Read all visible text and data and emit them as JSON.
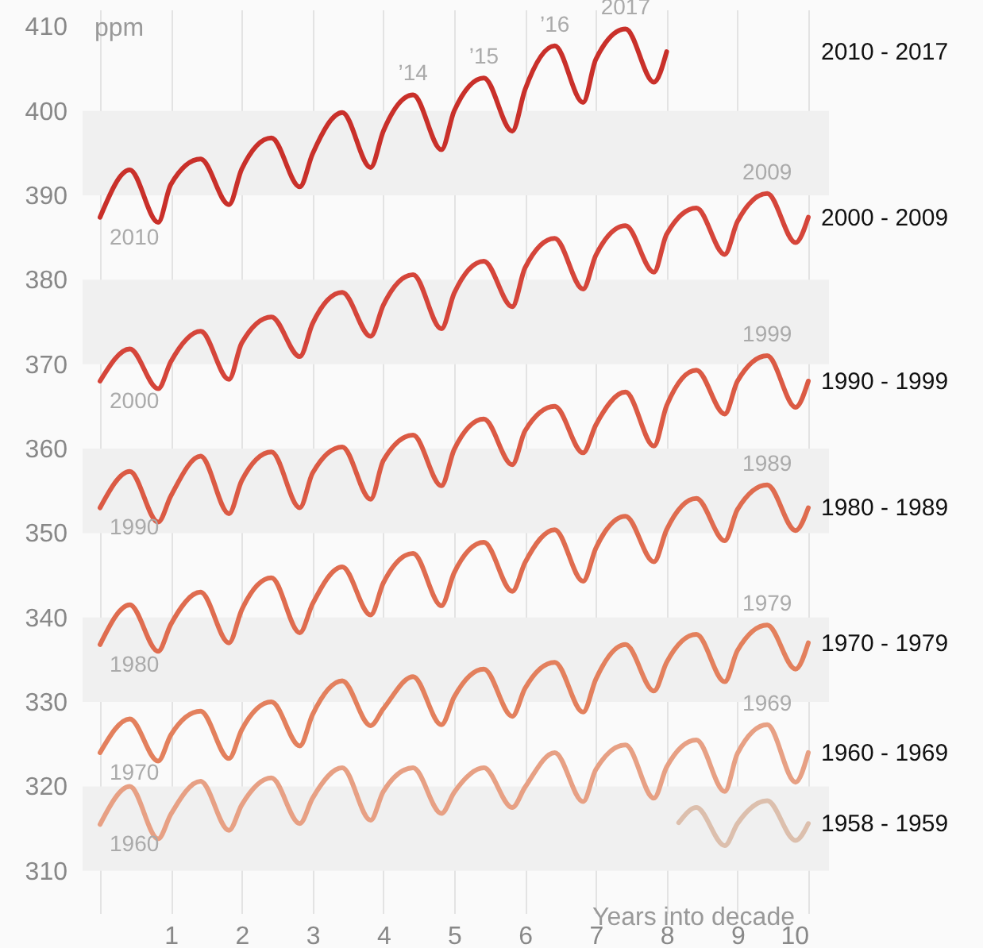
{
  "chart_data": {
    "type": "line",
    "xlabel": "Years into decade",
    "ylabel": "ppm",
    "x": [
      0,
      0.42,
      0.82,
      1,
      1.42,
      1.82,
      2,
      2.42,
      2.82,
      3,
      3.42,
      3.82,
      4,
      4.42,
      4.82,
      5,
      5.42,
      5.82,
      6,
      6.42,
      6.82,
      7,
      7.42,
      7.82,
      8,
      8.42,
      8.82,
      9,
      9.42,
      9.82,
      10
    ],
    "series": [
      {
        "name": "2010 - 2017",
        "color": "#c9302a",
        "x": [
          0,
          0.42,
          0.82,
          1,
          1.42,
          1.82,
          2,
          2.42,
          2.82,
          3,
          3.42,
          3.82,
          4,
          4.42,
          4.82,
          5,
          5.42,
          5.82,
          6,
          6.42,
          6.82,
          7,
          7.42,
          7.82,
          8
        ],
        "values": [
          387.4,
          393,
          386.8,
          391.3,
          394.3,
          388.9,
          393.1,
          396.8,
          391,
          394.9,
          399.8,
          393.3,
          397.6,
          401.9,
          395.4,
          400,
          403.9,
          397.6,
          402.5,
          407.7,
          401,
          406.1,
          409.7,
          403.4,
          407
        ]
      },
      {
        "name": "2000 - 2009",
        "color": "#d5453a",
        "values": [
          368,
          371.8,
          367.1,
          370.3,
          373.9,
          368.2,
          372.5,
          375.6,
          370.9,
          374.8,
          378.5,
          373.3,
          377,
          380.6,
          374.2,
          378.4,
          382.2,
          376.8,
          381.4,
          384.9,
          378.9,
          382.9,
          386.4,
          380.9,
          385.4,
          388.5,
          383,
          386.9,
          390.2,
          384.4,
          387.4
        ]
      },
      {
        "name": "1990 - 1999",
        "color": "#db5a44",
        "values": [
          353,
          357.3,
          351.3,
          354.4,
          359.1,
          352.3,
          356.2,
          359.6,
          353,
          357.1,
          360.2,
          354,
          358.6,
          361.6,
          355.6,
          359.9,
          363.5,
          358.1,
          362.1,
          365,
          359.5,
          362.8,
          366.7,
          360.3,
          365.1,
          369.3,
          364.1,
          368,
          371,
          364.9,
          368
        ]
      },
      {
        "name": "1980 - 1989",
        "color": "#df6c4f",
        "values": [
          336.8,
          341.5,
          336,
          339.2,
          343,
          337,
          340.9,
          344.7,
          338.2,
          341.6,
          346,
          340.3,
          344.1,
          347.6,
          341.4,
          345.3,
          348.9,
          343.1,
          346.5,
          350.4,
          344.3,
          348.2,
          352,
          346.6,
          350.4,
          354.1,
          349.1,
          352.8,
          355.7,
          350.3,
          353
        ]
      },
      {
        "name": "1970 - 1979",
        "color": "#e3805d",
        "values": [
          324,
          328,
          323,
          326.1,
          328.9,
          323.3,
          326.7,
          330,
          324.8,
          328.5,
          332.5,
          327.2,
          329.2,
          333,
          327.3,
          330.6,
          333.9,
          328.3,
          331.6,
          334.7,
          328.8,
          332.7,
          336.8,
          331.3,
          334.7,
          338,
          332.4,
          336.1,
          339.1,
          333.9,
          337
        ]
      },
      {
        "name": "1960 - 1969",
        "color": "#e7a084",
        "values": [
          315.5,
          320,
          313.8,
          316.7,
          320.6,
          314.8,
          317.8,
          321,
          315.6,
          318.6,
          322.2,
          316,
          319.4,
          322.2,
          316.8,
          319.3,
          322.2,
          317.5,
          319.9,
          324,
          318.2,
          322,
          324.9,
          318.6,
          322.3,
          325.5,
          319.4,
          323.9,
          327.3,
          320.5,
          324
        ]
      },
      {
        "name": "1958 - 1959",
        "color": "#dcbfad",
        "x": [
          8.17,
          8.42,
          8.82,
          9,
          9.42,
          9.82,
          10
        ],
        "values": [
          315.7,
          317.5,
          313,
          315.6,
          318.3,
          313.6,
          315.6
        ]
      }
    ],
    "xlim": [
      0,
      10
    ],
    "xticks": [
      {
        "value": 0,
        "label": null
      },
      1,
      2,
      3,
      4,
      5,
      6,
      7,
      8,
      9,
      10
    ],
    "ylim": [
      305,
      412
    ],
    "yticks": [
      310,
      320,
      330,
      340,
      350,
      360,
      370,
      380,
      390,
      400,
      410
    ],
    "grid": "x",
    "legend": false,
    "line_style": "solid",
    "marker": "none",
    "bands": [
      {
        "axis": "y",
        "from": 310,
        "to": 320,
        "color": "#f0f0f0"
      },
      {
        "axis": "y",
        "from": 330,
        "to": 340,
        "color": "#f0f0f0"
      },
      {
        "axis": "y",
        "from": 350,
        "to": 360,
        "color": "#f0f0f0"
      },
      {
        "axis": "y",
        "from": 370,
        "to": 380,
        "color": "#f0f0f0"
      },
      {
        "axis": "y",
        "from": 390,
        "to": 400,
        "color": "#f0f0f0"
      }
    ],
    "annotations": [
      {
        "text": "2010",
        "x": 0,
        "y": 387.4
      },
      {
        "text": "2000",
        "x": 0,
        "y": 368
      },
      {
        "text": "1990",
        "x": 0,
        "y": 353
      },
      {
        "text": "1980",
        "x": 0,
        "y": 336.8
      },
      {
        "text": "1970",
        "x": 0,
        "y": 324
      },
      {
        "text": "1960",
        "x": 0,
        "y": 315.5
      },
      {
        "text": "2009",
        "x": 9.42,
        "y": 390.2
      },
      {
        "text": "1999",
        "x": 9.42,
        "y": 371
      },
      {
        "text": "1989",
        "x": 9.42,
        "y": 355.7
      },
      {
        "text": "1979",
        "x": 9.42,
        "y": 339.1
      },
      {
        "text": "1969",
        "x": 9.42,
        "y": 327.3
      },
      {
        "text": "’14",
        "x": 4.42,
        "y": 401.9
      },
      {
        "text": "’15",
        "x": 5.42,
        "y": 403.9
      },
      {
        "text": "’16",
        "x": 6.42,
        "y": 407.7
      },
      {
        "text": "2017",
        "x": 7.42,
        "y": 409.7
      }
    ]
  }
}
